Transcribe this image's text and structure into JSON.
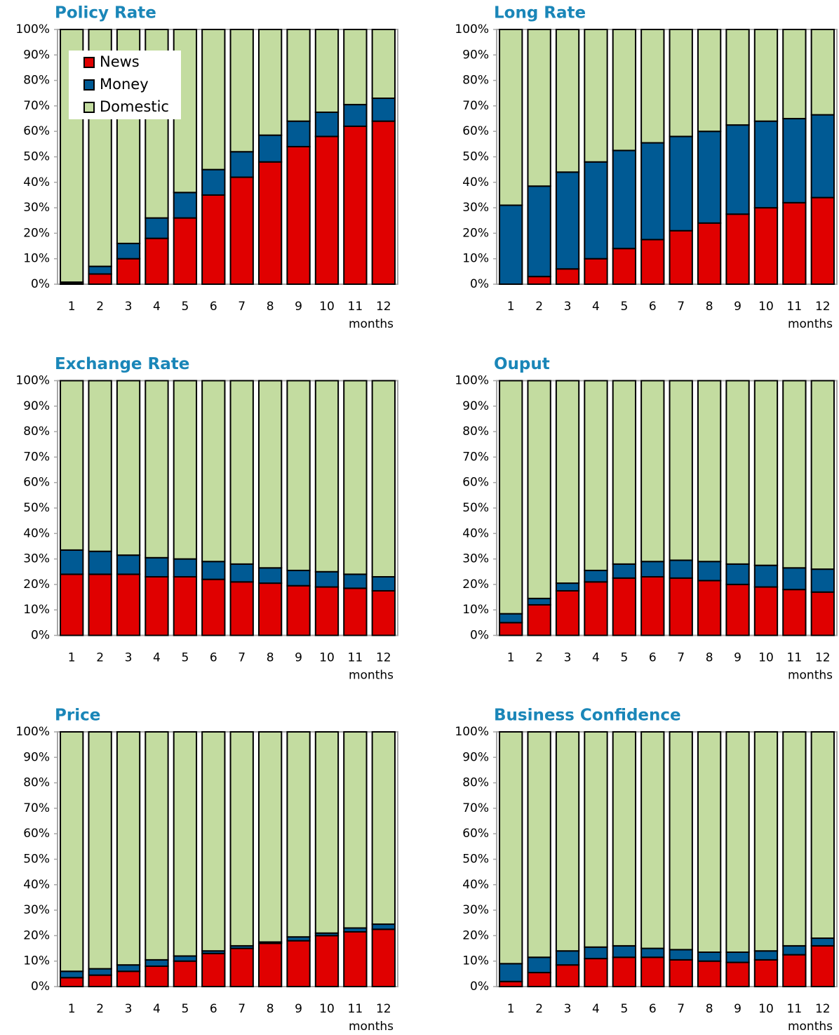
{
  "chart_data": [
    {
      "type": "stacked-bar",
      "title": "Policy Rate",
      "xlabel": "months",
      "legend": true,
      "categories": [
        "1",
        "2",
        "3",
        "4",
        "5",
        "6",
        "7",
        "8",
        "9",
        "10",
        "11",
        "12"
      ],
      "series": [
        {
          "name": "News",
          "color": "#e00000",
          "values": [
            0.3,
            4,
            10,
            18,
            26,
            35,
            42,
            48,
            54,
            58,
            62,
            64
          ]
        },
        {
          "name": "Money",
          "color": "#005a94",
          "values": [
            0.5,
            3,
            6,
            8,
            10,
            10,
            10,
            10.5,
            10,
            9.5,
            8.5,
            9
          ]
        },
        {
          "name": "Domestic",
          "color": "#c3dca0",
          "values": [
            99.2,
            93,
            84,
            74,
            64,
            55,
            48,
            41.5,
            36,
            32.5,
            29.5,
            27
          ]
        }
      ],
      "ylim": [
        0,
        100
      ],
      "yticks": [
        {
          "value": 0,
          "label": "0%"
        },
        {
          "value": 10,
          "label": "10%"
        },
        {
          "value": 20,
          "label": "20%"
        },
        {
          "value": 30,
          "label": "30%"
        },
        {
          "value": 40,
          "label": "40%"
        },
        {
          "value": 50,
          "label": "50%"
        },
        {
          "value": 60,
          "label": "60%"
        },
        {
          "value": 70,
          "label": "70%"
        },
        {
          "value": 80,
          "label": "80%"
        },
        {
          "value": 90,
          "label": "90%"
        },
        {
          "value": 100,
          "label": "100%"
        }
      ]
    },
    {
      "type": "stacked-bar",
      "title": "Long Rate",
      "xlabel": "months",
      "legend": false,
      "categories": [
        "1",
        "2",
        "3",
        "4",
        "5",
        "6",
        "7",
        "8",
        "9",
        "10",
        "11",
        "12"
      ],
      "series": [
        {
          "color": "#e00000",
          "values": [
            0,
            3,
            6,
            10,
            14,
            17.5,
            21,
            24,
            27.5,
            30,
            32,
            34
          ]
        },
        {
          "color": "#005a94",
          "values": [
            31,
            35.5,
            38,
            38,
            38.5,
            38,
            37,
            36,
            35,
            34,
            33,
            32.5
          ]
        },
        {
          "color": "#c3dca0",
          "values": [
            69,
            61.5,
            56,
            52,
            47.5,
            44.5,
            42,
            40,
            37.5,
            36,
            35,
            33.5
          ]
        }
      ],
      "ylim": [
        0,
        100
      ],
      "yticks": [
        {
          "value": 0,
          "label": "0%"
        },
        {
          "value": 10,
          "label": "10%"
        },
        {
          "value": 20,
          "label": "20%"
        },
        {
          "value": 30,
          "label": "30%"
        },
        {
          "value": 40,
          "label": "40%"
        },
        {
          "value": 50,
          "label": "50%"
        },
        {
          "value": 60,
          "label": "60%"
        },
        {
          "value": 70,
          "label": "70%"
        },
        {
          "value": 80,
          "label": "80%"
        },
        {
          "value": 90,
          "label": "90%"
        },
        {
          "value": 100,
          "label": "100%"
        }
      ]
    },
    {
      "type": "stacked-bar",
      "title": "Exchange Rate",
      "xlabel": "months",
      "legend": false,
      "categories": [
        "1",
        "2",
        "3",
        "4",
        "5",
        "6",
        "7",
        "8",
        "9",
        "10",
        "11",
        "12"
      ],
      "series": [
        {
          "color": "#e00000",
          "values": [
            24,
            24,
            24,
            23,
            23,
            22,
            21,
            20.5,
            19.5,
            19,
            18.5,
            17.5
          ]
        },
        {
          "color": "#005a94",
          "values": [
            9.5,
            9,
            7.5,
            7.5,
            7,
            7,
            7,
            6,
            6,
            6,
            5.5,
            5.5
          ]
        },
        {
          "color": "#c3dca0",
          "values": [
            66.5,
            67,
            68.5,
            69.5,
            70,
            71,
            72,
            73.5,
            74.5,
            75,
            76,
            77
          ]
        }
      ],
      "ylim": [
        0,
        100
      ],
      "yticks": [
        {
          "value": 0,
          "label": "0%"
        },
        {
          "value": 10,
          "label": "10%"
        },
        {
          "value": 20,
          "label": "20%"
        },
        {
          "value": 30,
          "label": "30%"
        },
        {
          "value": 40,
          "label": "40%"
        },
        {
          "value": 50,
          "label": "50%"
        },
        {
          "value": 60,
          "label": "60%"
        },
        {
          "value": 70,
          "label": "70%"
        },
        {
          "value": 80,
          "label": "80%"
        },
        {
          "value": 90,
          "label": "90%"
        },
        {
          "value": 100,
          "label": "100%"
        }
      ]
    },
    {
      "type": "stacked-bar",
      "title": "Ouput",
      "xlabel": "months",
      "legend": false,
      "categories": [
        "1",
        "2",
        "3",
        "4",
        "5",
        "6",
        "7",
        "8",
        "9",
        "10",
        "11",
        "12"
      ],
      "series": [
        {
          "color": "#e00000",
          "values": [
            5,
            12,
            17.5,
            21,
            22.5,
            23,
            22.5,
            21.5,
            20,
            19,
            18,
            17
          ]
        },
        {
          "color": "#005a94",
          "values": [
            3.5,
            2.5,
            3,
            4.5,
            5.5,
            6,
            7,
            7.5,
            8,
            8.5,
            8.5,
            9
          ]
        },
        {
          "color": "#c3dca0",
          "values": [
            91.5,
            85.5,
            79.5,
            74.5,
            72,
            71,
            70.5,
            71,
            72,
            72.5,
            73.5,
            74
          ]
        }
      ],
      "ylim": [
        0,
        100
      ],
      "yticks": [
        {
          "value": 0,
          "label": "0%"
        },
        {
          "value": 10,
          "label": "10%"
        },
        {
          "value": 20,
          "label": "20%"
        },
        {
          "value": 30,
          "label": "30%"
        },
        {
          "value": 40,
          "label": "40%"
        },
        {
          "value": 50,
          "label": "50%"
        },
        {
          "value": 60,
          "label": "60%"
        },
        {
          "value": 70,
          "label": "70%"
        },
        {
          "value": 80,
          "label": "80%"
        },
        {
          "value": 90,
          "label": "90%"
        },
        {
          "value": 100,
          "label": "100%"
        }
      ]
    },
    {
      "type": "stacked-bar",
      "title": "Price",
      "xlabel": "months",
      "legend": false,
      "categories": [
        "1",
        "2",
        "3",
        "4",
        "5",
        "6",
        "7",
        "8",
        "9",
        "10",
        "11",
        "12"
      ],
      "series": [
        {
          "color": "#e00000",
          "values": [
            3.5,
            4.5,
            6,
            8,
            10,
            13,
            15,
            17,
            18,
            20,
            21.5,
            22.5
          ]
        },
        {
          "color": "#005a94",
          "values": [
            2.5,
            2.5,
            2.5,
            2.5,
            2,
            1,
            1,
            0.5,
            1.5,
            1,
            1.5,
            2
          ]
        },
        {
          "color": "#c3dca0",
          "values": [
            94,
            93,
            91.5,
            89.5,
            88,
            86,
            84,
            82.5,
            80.5,
            79,
            77,
            75.5
          ]
        }
      ],
      "ylim": [
        0,
        100
      ],
      "yticks": [
        {
          "value": 0,
          "label": "0%"
        },
        {
          "value": 10,
          "label": "10%"
        },
        {
          "value": 20,
          "label": "20%"
        },
        {
          "value": 30,
          "label": "30%"
        },
        {
          "value": 40,
          "label": "40%"
        },
        {
          "value": 50,
          "label": "50%"
        },
        {
          "value": 60,
          "label": "60%"
        },
        {
          "value": 70,
          "label": "70%"
        },
        {
          "value": 80,
          "label": "80%"
        },
        {
          "value": 90,
          "label": "90%"
        },
        {
          "value": 100,
          "label": "100%"
        }
      ]
    },
    {
      "type": "stacked-bar",
      "title": "Business Confidence",
      "xlabel": "months",
      "legend": false,
      "categories": [
        "1",
        "2",
        "3",
        "4",
        "5",
        "6",
        "7",
        "8",
        "9",
        "10",
        "11",
        "12"
      ],
      "series": [
        {
          "color": "#e00000",
          "values": [
            2,
            5.5,
            8.5,
            11,
            11.5,
            11.5,
            10.5,
            10,
            9.5,
            10.5,
            12.5,
            16
          ]
        },
        {
          "color": "#005a94",
          "values": [
            7,
            6,
            5.5,
            4.5,
            4.5,
            3.5,
            4,
            3.5,
            4,
            3.5,
            3.5,
            3
          ]
        },
        {
          "color": "#c3dca0",
          "values": [
            91,
            88.5,
            86,
            84.5,
            84,
            85,
            85.5,
            86.5,
            86.5,
            86,
            84,
            81
          ]
        }
      ],
      "ylim": [
        0,
        100
      ],
      "yticks": [
        {
          "value": 0,
          "label": "0%"
        },
        {
          "value": 10,
          "label": "10%"
        },
        {
          "value": 20,
          "label": "20%"
        },
        {
          "value": 30,
          "label": "30%"
        },
        {
          "value": 40,
          "label": "40%"
        },
        {
          "value": 50,
          "label": "50%"
        },
        {
          "value": 60,
          "label": "60%"
        },
        {
          "value": 70,
          "label": "70%"
        },
        {
          "value": 80,
          "label": "80%"
        },
        {
          "value": 90,
          "label": "90%"
        },
        {
          "value": 100,
          "label": "100%"
        }
      ]
    }
  ]
}
